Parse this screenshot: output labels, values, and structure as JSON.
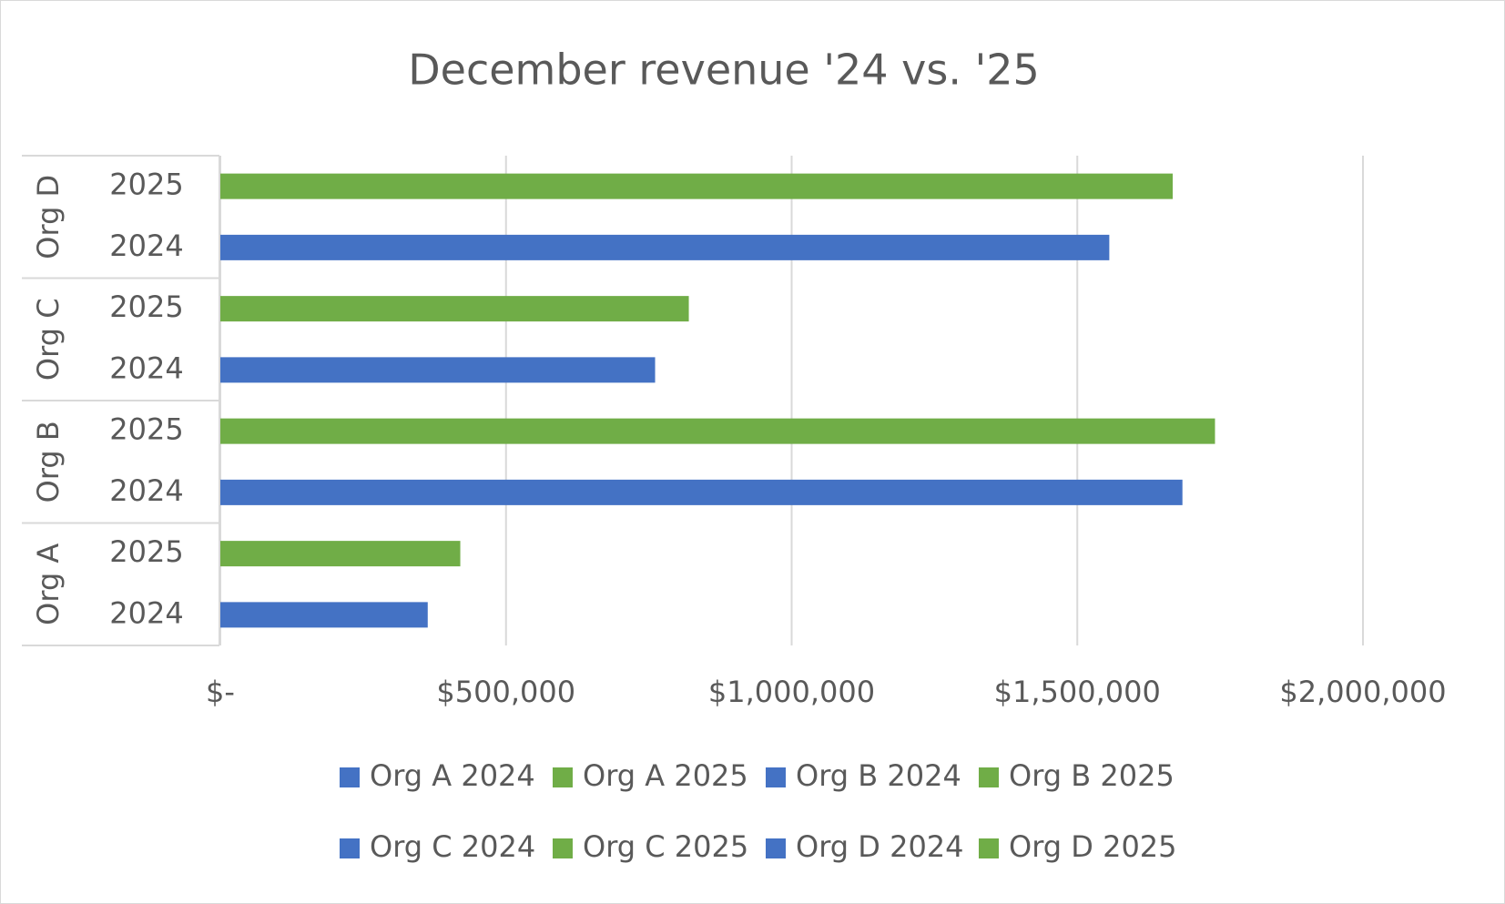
{
  "chart_data": {
    "type": "bar",
    "orientation": "horizontal",
    "title": "December revenue '24 vs. '25",
    "groups": [
      {
        "label": "Org A",
        "categories": [
          "2024",
          "2025"
        ]
      },
      {
        "label": "Org B",
        "categories": [
          "2024",
          "2025"
        ]
      },
      {
        "label": "Org C",
        "categories": [
          "2024",
          "2025"
        ]
      },
      {
        "label": "Org D",
        "categories": [
          "2024",
          "2025"
        ]
      }
    ],
    "series": [
      {
        "name": "Org A 2024",
        "color": "#4472c4",
        "values": [
          363000
        ]
      },
      {
        "name": "Org A 2025",
        "color": "#70ad47",
        "values": [
          420000
        ]
      },
      {
        "name": "Org B 2024",
        "color": "#4472c4",
        "values": [
          1684000
        ]
      },
      {
        "name": "Org B 2025",
        "color": "#70ad47",
        "values": [
          1741000
        ]
      },
      {
        "name": "Org C 2024",
        "color": "#4472c4",
        "values": [
          761000
        ]
      },
      {
        "name": "Org C 2025",
        "color": "#70ad47",
        "values": [
          820000
        ]
      },
      {
        "name": "Org D 2024",
        "color": "#4472c4",
        "values": [
          1556000
        ]
      },
      {
        "name": "Org D 2025",
        "color": "#70ad47",
        "values": [
          1667000
        ]
      }
    ],
    "xlim": [
      0,
      2000000
    ],
    "xticks": [
      {
        "value": 0,
        "label": "$-"
      },
      {
        "value": 500000,
        "label": "$500,000"
      },
      {
        "value": 1000000,
        "label": "$1,000,000"
      },
      {
        "value": 1500000,
        "label": "$1,500,000"
      },
      {
        "value": 2000000,
        "label": "$2,000,000"
      }
    ],
    "grid": true,
    "legend": "bottom"
  }
}
